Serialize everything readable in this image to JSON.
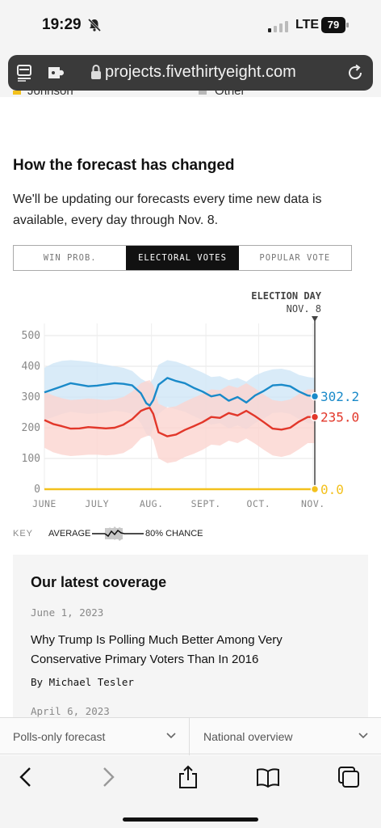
{
  "status_bar": {
    "time": "19:29",
    "network": "LTE",
    "battery": "79"
  },
  "browser": {
    "url": "projects.fivethirtyeight.com"
  },
  "legend_partial": {
    "left_label": "Johnson",
    "right_label": "Other",
    "left_color": "#f3c11d",
    "right_color": "#b8b8b8"
  },
  "section": {
    "title": "How the forecast has changed",
    "description": "We'll be updating our forecasts every time new data is available, every day through Nov. 8."
  },
  "tabs": [
    {
      "label": "WIN PROB.",
      "active": false
    },
    {
      "label": "ELECTORAL VOTES",
      "active": true
    },
    {
      "label": "POPULAR VOTE",
      "active": false
    }
  ],
  "chart_data": {
    "type": "line",
    "annotation": {
      "title": "ELECTION DAY",
      "subtitle": "NOV. 8"
    },
    "ylim": [
      0,
      538
    ],
    "y_ticks": [
      0,
      100,
      200,
      300,
      400,
      500
    ],
    "x_ticks": [
      "JUNE",
      "JULY",
      "AUG.",
      "SEPT.",
      "OCT.",
      "NOV."
    ],
    "x_tick_days": [
      0,
      30,
      61,
      92,
      122,
      153
    ],
    "x_end_day": 154,
    "series": [
      {
        "color": "#1a8ac9",
        "band_color": "#cfe6f6",
        "end_label": "302.2",
        "days": [
          0,
          5,
          10,
          15,
          20,
          25,
          30,
          35,
          40,
          45,
          50,
          55,
          58,
          60,
          62,
          65,
          70,
          75,
          80,
          85,
          90,
          95,
          100,
          105,
          110,
          115,
          120,
          125,
          130,
          135,
          140,
          145,
          150,
          154
        ],
        "values": [
          315,
          325,
          335,
          345,
          340,
          335,
          337,
          341,
          345,
          343,
          338,
          312,
          280,
          272,
          290,
          340,
          362,
          352,
          345,
          330,
          318,
          302,
          308,
          288,
          300,
          282,
          305,
          320,
          338,
          340,
          335,
          318,
          305,
          302.2
        ],
        "low": [
          225,
          235,
          245,
          252,
          248,
          245,
          247,
          250,
          255,
          252,
          245,
          215,
          180,
          172,
          200,
          245,
          268,
          260,
          252,
          238,
          225,
          210,
          215,
          198,
          208,
          195,
          215,
          230,
          248,
          250,
          245,
          228,
          215,
          212
        ],
        "high": [
          395,
          410,
          418,
          420,
          418,
          415,
          410,
          405,
          400,
          395,
          385,
          360,
          350,
          345,
          360,
          405,
          420,
          415,
          405,
          392,
          380,
          365,
          368,
          355,
          362,
          350,
          370,
          382,
          390,
          392,
          386,
          372,
          365,
          362
        ]
      },
      {
        "color": "#e2372a",
        "band_color": "#fbd5cf",
        "end_label": "235.0",
        "days": [
          0,
          5,
          10,
          15,
          20,
          25,
          30,
          35,
          40,
          45,
          50,
          55,
          58,
          60,
          62,
          65,
          70,
          75,
          80,
          85,
          90,
          95,
          100,
          105,
          110,
          115,
          120,
          125,
          130,
          135,
          140,
          145,
          150,
          154
        ],
        "values": [
          225,
          212,
          205,
          197,
          198,
          202,
          200,
          198,
          200,
          210,
          228,
          255,
          262,
          265,
          245,
          185,
          172,
          178,
          193,
          205,
          218,
          235,
          232,
          248,
          240,
          255,
          238,
          218,
          197,
          194,
          200,
          220,
          235,
          235.0
        ],
        "low": [
          135,
          120,
          112,
          108,
          110,
          112,
          112,
          110,
          112,
          118,
          135,
          165,
          172,
          175,
          160,
          100,
          85,
          90,
          105,
          115,
          128,
          145,
          142,
          158,
          150,
          165,
          148,
          128,
          110,
          105,
          112,
          130,
          150,
          150
        ],
        "high": [
          318,
          305,
          296,
          290,
          292,
          295,
          293,
          290,
          293,
          300,
          318,
          345,
          352,
          355,
          338,
          278,
          265,
          270,
          285,
          298,
          310,
          325,
          322,
          338,
          330,
          345,
          328,
          308,
          290,
          286,
          292,
          310,
          325,
          325
        ]
      },
      {
        "color": "#f3c11d",
        "end_label": "0.0",
        "days": [
          0,
          154
        ],
        "values": [
          0,
          0.0
        ]
      }
    ]
  },
  "chart_key": {
    "label": "KEY",
    "average": "AVERAGE",
    "chance": "80% CHANCE"
  },
  "coverage": {
    "title": "Our latest coverage",
    "date": "June 1, 2023",
    "headline": "Why Trump Is Polling Much Better Among Very Conservative Primary Voters Than In 2016",
    "byline": "By Michael Tesler",
    "next_date": "April 6, 2023"
  },
  "selectors": {
    "forecast": "Polls-only forecast",
    "view": "National overview"
  }
}
